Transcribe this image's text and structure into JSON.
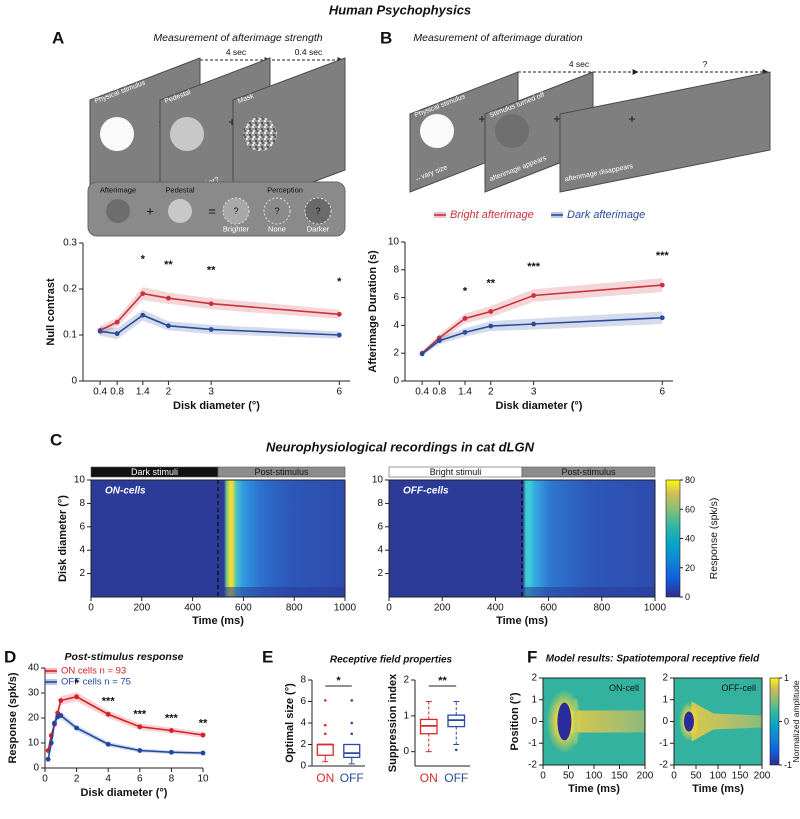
{
  "figure": {
    "section_titles": [
      "Human Psychophysics",
      "Neurophysiological recordings in cat dLGN"
    ],
    "panel_letters": [
      "A",
      "B",
      "C",
      "D",
      "E",
      "F"
    ]
  },
  "diagrams": {
    "A": {
      "title": "Measurement of afterimage strength",
      "durations": [
        "4 sec",
        "0.4 sec"
      ],
      "screens": [
        {
          "top": "Physical stimulus",
          "bottom": "↔vary size"
        },
        {
          "top": "Pedestal",
          "bottom": "brighter or darker?"
        },
        {
          "top": "Mask"
        }
      ],
      "key": {
        "labels": [
          "Afterimage",
          "Pedestal",
          "Perception"
        ],
        "operators": [
          "+",
          "="
        ],
        "symbol": "?",
        "options": [
          "Brighter",
          "None",
          "Darker"
        ]
      }
    },
    "B": {
      "title": "Measurement of afterimage duration",
      "durations": [
        "4 sec",
        "?"
      ],
      "screens": [
        {
          "top": "Physical stimulus",
          "bottom": "↔vary size"
        },
        {
          "top": "Stimulus turned off",
          "bottom": "afterimage appears"
        },
        {
          "bottom": "afterimage disappears"
        }
      ]
    }
  },
  "chart_data": [
    {
      "type": "line",
      "xlabel": "Disk diameter (°)",
      "ylabel": "Null contrast",
      "x": [
        0.4,
        0.8,
        1.4,
        2,
        3,
        6
      ],
      "xlim": [
        0,
        6.25
      ],
      "xticks": [
        0.4,
        0.8,
        1.4,
        2,
        3,
        6
      ],
      "ylim": [
        0,
        0.3
      ],
      "yticks": [
        0,
        0.1,
        0.2,
        0.3
      ],
      "series": [
        {
          "color": "#c8323a",
          "values": [
            0.11,
            0.128,
            0.19,
            0.18,
            0.168,
            0.145
          ],
          "errors": [
            0.01,
            0.01,
            0.014,
            0.012,
            0.012,
            0.01
          ]
        },
        {
          "color": "#2a4b9b",
          "values": [
            0.108,
            0.103,
            0.143,
            0.12,
            0.112,
            0.1
          ],
          "errors": [
            0.01,
            0.012,
            0.012,
            0.01,
            0.01,
            0.008
          ]
        }
      ],
      "annotations": [
        {
          "x": 1.4,
          "text": "*"
        },
        {
          "x": 2,
          "text": "**"
        },
        {
          "x": 3,
          "text": "**"
        },
        {
          "x": 6,
          "text": "*"
        }
      ]
    },
    {
      "type": "line",
      "xlabel": "Disk diameter (°)",
      "ylabel": "Afterimage Duration (s)",
      "x": [
        0.4,
        0.8,
        1.4,
        2,
        3,
        6
      ],
      "xlim": [
        0,
        6.25
      ],
      "xticks": [
        0.4,
        0.8,
        1.4,
        2,
        3,
        6
      ],
      "ylim": [
        0,
        10
      ],
      "yticks": [
        0,
        2,
        4,
        6,
        8,
        10
      ],
      "legend": "top",
      "series": [
        {
          "name": "Bright afterimage",
          "color": "#c8323a",
          "values": [
            2.0,
            3.1,
            4.5,
            5.0,
            6.15,
            6.9
          ],
          "errors": [
            0.15,
            0.25,
            0.35,
            0.4,
            0.45,
            0.5
          ]
        },
        {
          "name": "Dark afterimage",
          "color": "#2a4b9b",
          "values": [
            1.95,
            2.9,
            3.5,
            3.95,
            4.1,
            4.55
          ],
          "errors": [
            0.15,
            0.25,
            0.3,
            0.35,
            0.4,
            0.45
          ]
        }
      ],
      "annotations": [
        {
          "x": 1.4,
          "text": "*"
        },
        {
          "x": 2,
          "text": "**"
        },
        {
          "x": 3,
          "text": "***"
        },
        {
          "x": 6,
          "text": "***"
        }
      ]
    },
    {
      "type": "heatmap",
      "xlabel": "Time (ms)",
      "ylabel": "Disk diameter (°)",
      "xlim": [
        0,
        1000
      ],
      "xticks": [
        0,
        200,
        400,
        600,
        800,
        1000
      ],
      "ylim": [
        0,
        10
      ],
      "yticks": [
        2,
        4,
        6,
        8,
        10
      ],
      "stimulus_offset": 500,
      "colorbar": {
        "label": "Response (spk/s)",
        "lim": [
          0,
          80
        ],
        "ticks": [
          0,
          20,
          40,
          60,
          80
        ]
      },
      "panels": [
        {
          "label": "ON-cells",
          "phases": [
            "Dark stimuli",
            "Post-stimulus"
          ]
        },
        {
          "label": "OFF-cells",
          "phases": [
            "Bright stimuli",
            "Post-stimulus"
          ]
        }
      ]
    },
    {
      "type": "line",
      "title": "Post-stimulus response",
      "xlabel": "Disk diameter (°)",
      "ylabel": "Response (spk/s)",
      "x": [
        0.2,
        0.4,
        0.6,
        0.8,
        1,
        2,
        4,
        6,
        8,
        10
      ],
      "xlim": [
        0,
        10
      ],
      "xticks": [
        0,
        2,
        4,
        6,
        8,
        10
      ],
      "ylim": [
        0,
        40
      ],
      "yticks": [
        0,
        10,
        20,
        30,
        40
      ],
      "legend": "upper left",
      "series": [
        {
          "name": "ON cells n = 93",
          "color": "#d61f26",
          "values": [
            7,
            13,
            17.5,
            22,
            27,
            28.5,
            21.5,
            16.5,
            15,
            13.2
          ],
          "errors": [
            1.5,
            1.5,
            1.5,
            1.5,
            1.8,
            1.8,
            1.5,
            1.3,
            1.2,
            1.1
          ]
        },
        {
          "name": "OFF cells n = 75",
          "color": "#1f47a0",
          "values": [
            3.5,
            10,
            18,
            20.5,
            21,
            16,
            9.5,
            7,
            6.3,
            6
          ],
          "errors": [
            1,
            1.2,
            1.4,
            1.4,
            1.4,
            1.2,
            1,
            0.8,
            0.7,
            0.7
          ]
        }
      ],
      "annotations": [
        {
          "x": 2,
          "text": "*"
        },
        {
          "x": 4,
          "text": "***"
        },
        {
          "x": 6,
          "text": "***"
        },
        {
          "x": 8,
          "text": "***"
        },
        {
          "x": 10,
          "text": "**"
        }
      ]
    },
    {
      "type": "box",
      "title": "Receptive field properties",
      "panels": [
        {
          "ylabel": "Optimal size (°)",
          "ylim": [
            0,
            8
          ],
          "yticks": [
            0,
            2,
            4,
            6,
            8
          ],
          "significance": "*",
          "boxes": [
            {
              "name": "ON",
              "color": "#d62a2e",
              "min": 0.4,
              "q1": 1,
              "median": 2,
              "q3": 2,
              "max": 2,
              "outliers": [
                6.1,
                3.8,
                3
              ]
            },
            {
              "name": "OFF",
              "color": "#2a4c9c",
              "min": 0.2,
              "q1": 0.8,
              "median": 1.2,
              "q3": 2,
              "max": 2,
              "outliers": [
                6.1,
                4,
                3
              ]
            }
          ]
        },
        {
          "ylabel": "Suppression index",
          "ylim": [
            -0.4,
            2
          ],
          "yticks": [
            0,
            1,
            2
          ],
          "significance": "**",
          "boxes": [
            {
              "name": "ON",
              "color": "#d62a2e",
              "min": 0,
              "q1": 0.5,
              "median": 0.72,
              "q3": 0.9,
              "max": 1.4
            },
            {
              "name": "OFF",
              "color": "#2a4c9c",
              "min": 0.2,
              "q1": 0.7,
              "median": 0.88,
              "q3": 1.02,
              "max": 1.4,
              "outliers": [
                0.05
              ]
            }
          ]
        }
      ]
    },
    {
      "type": "heatmap",
      "title": "Model results: Spatiotemporal receptive field",
      "xlabel": "Time (ms)",
      "ylabel": "Position (°)",
      "xlim": [
        0,
        200
      ],
      "xticks": [
        0,
        50,
        100,
        150,
        200
      ],
      "ylim": [
        -2,
        2
      ],
      "yticks": [
        -2,
        -1,
        0,
        1,
        2
      ],
      "colorbar": {
        "label": "Normalized amplitude",
        "lim": [
          -1,
          1
        ],
        "ticks": [
          -1,
          0,
          1
        ]
      },
      "panels": [
        {
          "label": "ON-cell"
        },
        {
          "label": "OFF-cell"
        }
      ]
    }
  ]
}
